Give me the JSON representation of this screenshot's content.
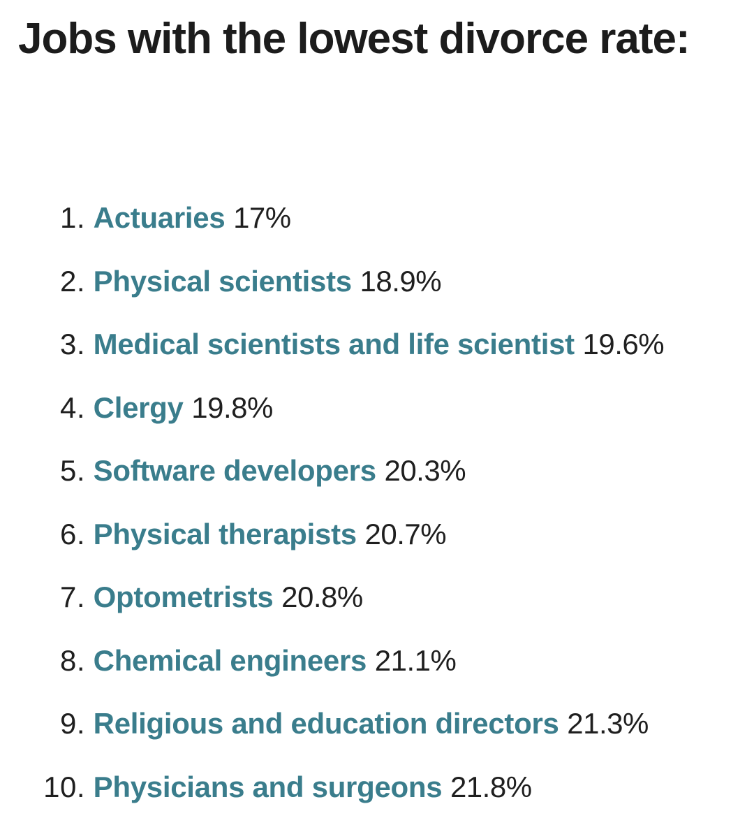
{
  "title": "Jobs with the lowest divorce rate:",
  "jobs": [
    {
      "rank": "1.",
      "name": "Actuaries",
      "rate": "17%"
    },
    {
      "rank": "2.",
      "name": "Physical scientists",
      "rate": "18.9%"
    },
    {
      "rank": "3.",
      "name": "Medical scientists and life scientist",
      "rate": "19.6%"
    },
    {
      "rank": "4.",
      "name": "Clergy",
      "rate": "19.8%"
    },
    {
      "rank": "5.",
      "name": "Software developers",
      "rate": "20.3%"
    },
    {
      "rank": "6.",
      "name": "Physical therapists",
      "rate": "20.7%"
    },
    {
      "rank": "7.",
      "name": "Optometrists",
      "rate": "20.8%"
    },
    {
      "rank": "8.",
      "name": "Chemical engineers",
      "rate": "21.1%"
    },
    {
      "rank": "9.",
      "name": "Religious and education directors",
      "rate": "21.3%"
    },
    {
      "rank": "10.",
      "name": "Physicians and surgeons",
      "rate": "21.8%"
    }
  ],
  "colors": {
    "link": "#3a7d8c",
    "text": "#1f1f1f",
    "background": "#ffffff"
  }
}
